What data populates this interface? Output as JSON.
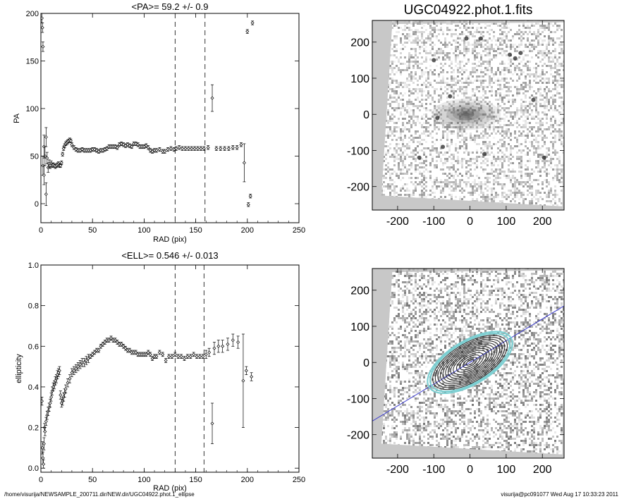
{
  "footer": {
    "path": "/home/visurija/NEWSAMPLE_200711.dir/NEW.dir/UGC04922.phot.1_ellipse",
    "stamp": "visurija@pc091077  Wed Aug 17 10:33:23 2011"
  },
  "colors": {
    "contour": "#222222",
    "outer_contour": "#7ccfd2",
    "major_axis": "#3a3ad0",
    "frame_bg": "#c8c8c8"
  },
  "chart_data": [
    {
      "id": "pa",
      "type": "scatter",
      "title": "<PA>=  59.2 +/-   0.9",
      "xlabel": "RAD (pix)",
      "ylabel": "PA",
      "xlim": [
        0,
        250
      ],
      "ylim": [
        -20,
        200
      ],
      "xticks": [
        0,
        50,
        100,
        150,
        200,
        250
      ],
      "yticks": [
        0,
        50,
        100,
        150,
        200
      ],
      "grid": false,
      "vlines": [
        130,
        159
      ],
      "points": [
        [
          1,
          195,
          5
        ],
        [
          1.5,
          185,
          5
        ],
        [
          2,
          165,
          5
        ],
        [
          2,
          40,
          10
        ],
        [
          3,
          30,
          10
        ],
        [
          3,
          60,
          12
        ],
        [
          4,
          50,
          10
        ],
        [
          5,
          10,
          12
        ],
        [
          5,
          70,
          10
        ],
        [
          6,
          48,
          6
        ],
        [
          7,
          38,
          5
        ],
        [
          8,
          42,
          4
        ],
        [
          9,
          40,
          3
        ],
        [
          10,
          42,
          3
        ],
        [
          11,
          40,
          2
        ],
        [
          12,
          41,
          2
        ],
        [
          13,
          40,
          2
        ],
        [
          14,
          39,
          2
        ],
        [
          15,
          40,
          2
        ],
        [
          16,
          41,
          2
        ],
        [
          17,
          42,
          2
        ],
        [
          18,
          40,
          2
        ],
        [
          19,
          40,
          2
        ],
        [
          20,
          43,
          2
        ],
        [
          21,
          52,
          2
        ],
        [
          22,
          58,
          2
        ],
        [
          23,
          61,
          2
        ],
        [
          24,
          63,
          2
        ],
        [
          25,
          64,
          2
        ],
        [
          26,
          65,
          2
        ],
        [
          27,
          66,
          2
        ],
        [
          28,
          67,
          2
        ],
        [
          29,
          66,
          2
        ],
        [
          30,
          62,
          2
        ],
        [
          32,
          59,
          2
        ],
        [
          34,
          57,
          2
        ],
        [
          36,
          56,
          2
        ],
        [
          38,
          56,
          2
        ],
        [
          40,
          57,
          2
        ],
        [
          42,
          56,
          2
        ],
        [
          44,
          56,
          2
        ],
        [
          46,
          56,
          2
        ],
        [
          48,
          56,
          2
        ],
        [
          50,
          57,
          2
        ],
        [
          52,
          57,
          2
        ],
        [
          54,
          56,
          2
        ],
        [
          56,
          55,
          2
        ],
        [
          58,
          56,
          2
        ],
        [
          60,
          56,
          2
        ],
        [
          62,
          57,
          2
        ],
        [
          64,
          58,
          2
        ],
        [
          66,
          60,
          2
        ],
        [
          68,
          60,
          2
        ],
        [
          70,
          60,
          2
        ],
        [
          72,
          60,
          2
        ],
        [
          74,
          59,
          2
        ],
        [
          76,
          62,
          2
        ],
        [
          78,
          63,
          2
        ],
        [
          80,
          62,
          2
        ],
        [
          82,
          61,
          2
        ],
        [
          84,
          62,
          2
        ],
        [
          86,
          61,
          2
        ],
        [
          88,
          60,
          2
        ],
        [
          90,
          63,
          2
        ],
        [
          92,
          63,
          2
        ],
        [
          94,
          62,
          2
        ],
        [
          96,
          60,
          2
        ],
        [
          98,
          60,
          2
        ],
        [
          100,
          60,
          2
        ],
        [
          102,
          61,
          2
        ],
        [
          104,
          59,
          2
        ],
        [
          106,
          56,
          2
        ],
        [
          108,
          55,
          2
        ],
        [
          110,
          56,
          2
        ],
        [
          112,
          56,
          2
        ],
        [
          115,
          57,
          2
        ],
        [
          118,
          55,
          2
        ],
        [
          120,
          55,
          2
        ],
        [
          123,
          57,
          2
        ],
        [
          126,
          58,
          2
        ],
        [
          129,
          57,
          2
        ],
        [
          131,
          58,
          2
        ],
        [
          134,
          59,
          2
        ],
        [
          137,
          58,
          2
        ],
        [
          140,
          58,
          2
        ],
        [
          143,
          58,
          2
        ],
        [
          146,
          58,
          2
        ],
        [
          149,
          58,
          2
        ],
        [
          152,
          58,
          2
        ],
        [
          155,
          58,
          2
        ],
        [
          158,
          58,
          2
        ],
        [
          162,
          59,
          2
        ],
        [
          166,
          111,
          14
        ],
        [
          170,
          58,
          2
        ],
        [
          174,
          58,
          2
        ],
        [
          178,
          58,
          2
        ],
        [
          182,
          58,
          2
        ],
        [
          186,
          59,
          2
        ],
        [
          190,
          59,
          2
        ],
        [
          194,
          62,
          2
        ],
        [
          197,
          43,
          20
        ],
        [
          200,
          181,
          2
        ],
        [
          201,
          -1,
          2
        ],
        [
          203,
          8,
          2
        ],
        [
          205,
          190,
          2
        ]
      ]
    },
    {
      "id": "ell",
      "type": "scatter",
      "title": "<ELL>= 0.546 +/-  0.013",
      "xlabel": "RAD (pix)",
      "ylabel": "ellipticity",
      "xlim": [
        0,
        250
      ],
      "ylim": [
        -0.02,
        1.0
      ],
      "xticks": [
        0,
        50,
        100,
        150,
        200,
        250
      ],
      "yticks": [
        0.0,
        0.2,
        0.4,
        0.6,
        0.8,
        1.0
      ],
      "ytick_labels": [
        "0.0",
        "0.2",
        "0.4",
        "0.6",
        "0.8",
        "1.0"
      ],
      "grid": false,
      "vlines": [
        130,
        158
      ],
      "points": [
        [
          1,
          0.33,
          0.02
        ],
        [
          1.5,
          0.1,
          0.03
        ],
        [
          2,
          0.05,
          0.03
        ],
        [
          2.5,
          0.02,
          0.02
        ],
        [
          3,
          0.12,
          0.03
        ],
        [
          3.5,
          0.2,
          0.02
        ],
        [
          4,
          0.18,
          0.02
        ],
        [
          5,
          0.23,
          0.02
        ],
        [
          6,
          0.26,
          0.02
        ],
        [
          7,
          0.28,
          0.02
        ],
        [
          8,
          0.3,
          0.02
        ],
        [
          9,
          0.32,
          0.02
        ],
        [
          10,
          0.35,
          0.02
        ],
        [
          11,
          0.38,
          0.02
        ],
        [
          12,
          0.4,
          0.02
        ],
        [
          13,
          0.41,
          0.02
        ],
        [
          14,
          0.43,
          0.02
        ],
        [
          15,
          0.44,
          0.02
        ],
        [
          16,
          0.46,
          0.02
        ],
        [
          17,
          0.47,
          0.02
        ],
        [
          18,
          0.48,
          0.02
        ],
        [
          19,
          0.36,
          0.02
        ],
        [
          20,
          0.32,
          0.02
        ],
        [
          21,
          0.33,
          0.02
        ],
        [
          22,
          0.35,
          0.02
        ],
        [
          23,
          0.37,
          0.02
        ],
        [
          24,
          0.39,
          0.02
        ],
        [
          26,
          0.42,
          0.02
        ],
        [
          28,
          0.44,
          0.02
        ],
        [
          30,
          0.47,
          0.02
        ],
        [
          32,
          0.48,
          0.02
        ],
        [
          34,
          0.49,
          0.02
        ],
        [
          36,
          0.5,
          0.02
        ],
        [
          38,
          0.51,
          0.02
        ],
        [
          40,
          0.52,
          0.02
        ],
        [
          42,
          0.52,
          0.02
        ],
        [
          44,
          0.53,
          0.02
        ],
        [
          46,
          0.54,
          0.02
        ],
        [
          48,
          0.55,
          0.01
        ],
        [
          50,
          0.56,
          0.01
        ],
        [
          52,
          0.57,
          0.01
        ],
        [
          54,
          0.58,
          0.01
        ],
        [
          56,
          0.58,
          0.01
        ],
        [
          58,
          0.6,
          0.01
        ],
        [
          60,
          0.61,
          0.01
        ],
        [
          62,
          0.62,
          0.01
        ],
        [
          64,
          0.63,
          0.01
        ],
        [
          66,
          0.63,
          0.01
        ],
        [
          68,
          0.64,
          0.01
        ],
        [
          70,
          0.63,
          0.01
        ],
        [
          72,
          0.63,
          0.01
        ],
        [
          74,
          0.62,
          0.01
        ],
        [
          76,
          0.61,
          0.01
        ],
        [
          78,
          0.61,
          0.01
        ],
        [
          80,
          0.6,
          0.01
        ],
        [
          82,
          0.59,
          0.01
        ],
        [
          84,
          0.58,
          0.01
        ],
        [
          86,
          0.58,
          0.01
        ],
        [
          88,
          0.57,
          0.01
        ],
        [
          90,
          0.57,
          0.01
        ],
        [
          92,
          0.57,
          0.01
        ],
        [
          94,
          0.56,
          0.01
        ],
        [
          96,
          0.56,
          0.01
        ],
        [
          98,
          0.56,
          0.01
        ],
        [
          100,
          0.56,
          0.01
        ],
        [
          102,
          0.56,
          0.01
        ],
        [
          104,
          0.57,
          0.01
        ],
        [
          106,
          0.56,
          0.01
        ],
        [
          108,
          0.54,
          0.01
        ],
        [
          110,
          0.55,
          0.01
        ],
        [
          112,
          0.55,
          0.01
        ],
        [
          115,
          0.57,
          0.01
        ],
        [
          118,
          0.56,
          0.01
        ],
        [
          121,
          0.53,
          0.01
        ],
        [
          124,
          0.55,
          0.01
        ],
        [
          127,
          0.55,
          0.01
        ],
        [
          130,
          0.56,
          0.01
        ],
        [
          133,
          0.55,
          0.01
        ],
        [
          136,
          0.55,
          0.01
        ],
        [
          139,
          0.54,
          0.01
        ],
        [
          142,
          0.55,
          0.01
        ],
        [
          145,
          0.55,
          0.01
        ],
        [
          148,
          0.56,
          0.01
        ],
        [
          151,
          0.55,
          0.01
        ],
        [
          154,
          0.55,
          0.01
        ],
        [
          157,
          0.55,
          0.01
        ],
        [
          160,
          0.56,
          0.02
        ],
        [
          163,
          0.57,
          0.02
        ],
        [
          166,
          0.22,
          0.1
        ],
        [
          168,
          0.59,
          0.03
        ],
        [
          172,
          0.6,
          0.03
        ],
        [
          176,
          0.6,
          0.03
        ],
        [
          181,
          0.61,
          0.03
        ],
        [
          186,
          0.63,
          0.03
        ],
        [
          191,
          0.62,
          0.03
        ],
        [
          196,
          0.43,
          0.23
        ],
        [
          199,
          0.48,
          0.02
        ],
        [
          204,
          0.45,
          0.02
        ]
      ]
    },
    {
      "id": "image-top",
      "type": "heatmap",
      "title": "UGC04922.phot.1.fits",
      "xlim": [
        -270,
        260
      ],
      "ylim": [
        -265,
        260
      ],
      "xticks": [
        -200,
        -100,
        0,
        100,
        200
      ],
      "yticks": [
        -200,
        -100,
        0,
        100,
        200
      ],
      "xlabel": "",
      "ylabel": ""
    },
    {
      "id": "image-bottom",
      "type": "heatmap",
      "title": "",
      "xlim": [
        -270,
        260
      ],
      "ylim": [
        -265,
        260
      ],
      "xticks": [
        -200,
        -100,
        0,
        100,
        200
      ],
      "yticks": [
        -200,
        -100,
        0,
        100,
        200
      ],
      "xlabel": "",
      "ylabel": "",
      "ellipse_pa_deg": 59.2,
      "ellipse_ell": 0.546,
      "contour_semimajor": [
        12,
        22,
        32,
        42,
        52,
        60,
        68,
        76,
        84,
        92,
        100,
        108,
        116,
        124,
        132
      ]
    }
  ]
}
